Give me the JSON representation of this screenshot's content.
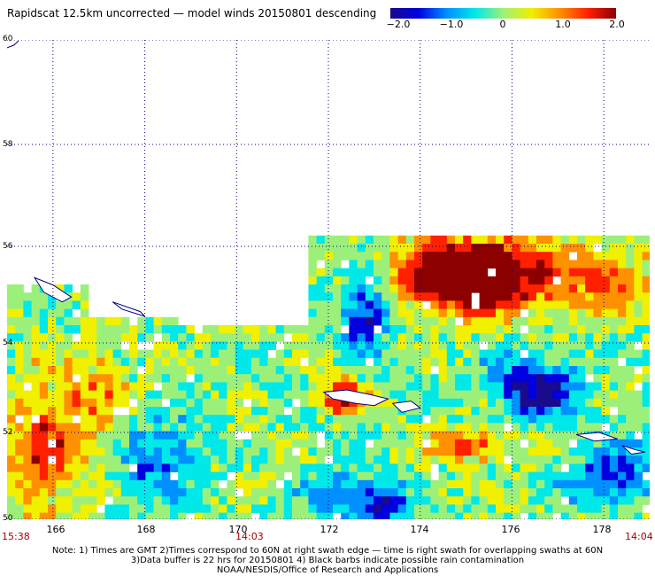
{
  "title": "Rapidscat 12.5km uncorrected — model winds 20150801 descending",
  "colorbar": {
    "tick_labels": [
      "−2.0",
      "−1.0",
      "0",
      "1.0",
      "2.0"
    ],
    "tick_values": [
      -2.0,
      -1.0,
      0,
      1.0,
      2.0
    ],
    "colors": [
      "#1a0a8c",
      "#0000e0",
      "#0090ff",
      "#00e8e8",
      "#9cf07a",
      "#f0f000",
      "#ff9000",
      "#ff2000",
      "#8c0000"
    ]
  },
  "map": {
    "lat_labels": [
      "60",
      "58",
      "56",
      "54",
      "52",
      "50"
    ],
    "lat_values": [
      60,
      58,
      56,
      54,
      52,
      50
    ],
    "lon_labels": [
      "166",
      "168",
      "170",
      "172",
      "174",
      "176",
      "178"
    ],
    "lon_values": [
      166,
      168,
      170,
      172,
      174,
      176,
      178
    ],
    "lon_range": [
      165.0,
      179.0
    ],
    "lat_range": [
      50,
      60
    ],
    "grid_style": "dotted",
    "coastline_color": "#00008c"
  },
  "time_labels": {
    "left": "15:38",
    "middle": "14:03",
    "right": "14:04"
  },
  "notes": [
    "Note: 1) Times are GMT 2)Times correspond to 60N at right swath edge — time is right swath for overlapping swaths at 60N",
    "3)Data buffer is 22 hrs for 20150801 4) Black barbs indicate possible rain contamination",
    "NOAA/NESDIS/Office of Research and Applications"
  ]
}
